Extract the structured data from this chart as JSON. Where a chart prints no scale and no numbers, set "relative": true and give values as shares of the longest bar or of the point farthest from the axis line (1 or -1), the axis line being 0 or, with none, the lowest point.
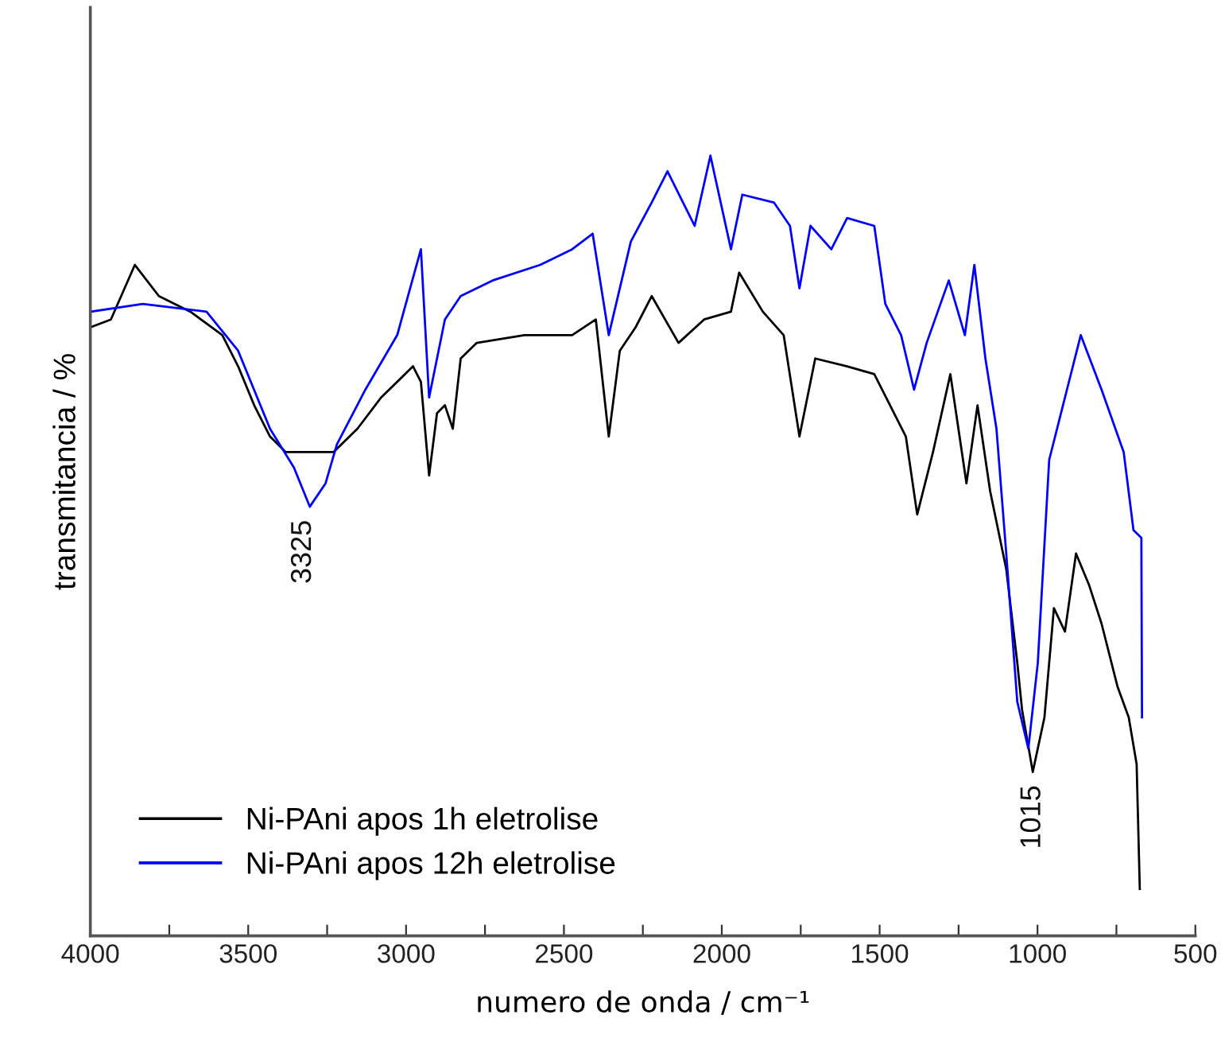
{
  "chart_data": {
    "type": "line",
    "relative": true,
    "xlabel": "numero de onda / cm⁻¹",
    "ylabel": "transmitancia / %",
    "xlim": [
      4000,
      500
    ],
    "xticks": [
      4000,
      {
        "value": 3750,
        "label": null
      },
      3500,
      {
        "value": 3250,
        "label": null
      },
      3000,
      {
        "value": 2750,
        "label": null
      },
      2500,
      {
        "value": 2250,
        "label": null
      },
      2000,
      {
        "value": 1750,
        "label": null
      },
      1500,
      {
        "value": 1250,
        "label": null
      },
      1000,
      {
        "value": 750,
        "label": null
      },
      500
    ],
    "tick_labels": "x",
    "grid": false,
    "legend": "bottom left",
    "marker": "none",
    "line_style": "solid",
    "annotations": [
      {
        "text": "3325",
        "x": 3325,
        "y": 0.55
      },
      {
        "text": "1015",
        "x": 1015,
        "y": 0.21
      }
    ],
    "series": [
      {
        "name": "Ni-PAni apos 1h eletrolise",
        "color": "#000000",
        "x": [
          4000,
          3935,
          3859,
          3783,
          3683,
          3582,
          3532,
          3481,
          3431,
          3381,
          3305,
          3230,
          3154,
          3079,
          3003,
          2978,
          2953,
          2927,
          2902,
          2877,
          2852,
          2827,
          2776,
          2625,
          2474,
          2399,
          2358,
          2323,
          2273,
          2222,
          2137,
          2056,
          1971,
          1945,
          1870,
          1804,
          1754,
          1704,
          1603,
          1517,
          1467,
          1417,
          1381,
          1331,
          1276,
          1225,
          1190,
          1150,
          1099,
          1064,
          1049,
          1015,
          978,
          948,
          913,
          878,
          837,
          797,
          747,
          711,
          686,
          676
        ],
        "values": [
          0.78,
          0.79,
          0.86,
          0.82,
          0.8,
          0.77,
          0.73,
          0.68,
          0.64,
          0.62,
          0.62,
          0.62,
          0.65,
          0.69,
          0.72,
          0.73,
          0.71,
          0.59,
          0.67,
          0.68,
          0.65,
          0.74,
          0.76,
          0.77,
          0.77,
          0.79,
          0.64,
          0.75,
          0.78,
          0.82,
          0.76,
          0.79,
          0.8,
          0.85,
          0.8,
          0.77,
          0.64,
          0.74,
          0.73,
          0.72,
          0.68,
          0.64,
          0.54,
          0.62,
          0.72,
          0.58,
          0.68,
          0.57,
          0.47,
          0.35,
          0.29,
          0.21,
          0.28,
          0.42,
          0.39,
          0.49,
          0.45,
          0.4,
          0.32,
          0.28,
          0.22,
          0.06
        ]
      },
      {
        "name": "Ni-PAni apos 12h eletrolise",
        "color": "#0000ff",
        "x": [
          4000,
          3834,
          3632,
          3532,
          3431,
          3355,
          3305,
          3255,
          3219,
          3129,
          3028,
          2953,
          2927,
          2877,
          2827,
          2726,
          2575,
          2474,
          2409,
          2358,
          2288,
          2222,
          2172,
          2086,
          2036,
          1971,
          1935,
          1835,
          1784,
          1754,
          1719,
          1653,
          1603,
          1517,
          1482,
          1432,
          1391,
          1351,
          1281,
          1230,
          1200,
          1165,
          1130,
          1099,
          1064,
          1029,
          999,
          963,
          913,
          863,
          797,
          727,
          696,
          671,
          669
        ],
        "values": [
          0.8,
          0.81,
          0.8,
          0.75,
          0.65,
          0.6,
          0.55,
          0.58,
          0.63,
          0.7,
          0.77,
          0.88,
          0.69,
          0.79,
          0.82,
          0.84,
          0.86,
          0.88,
          0.9,
          0.77,
          0.89,
          0.94,
          0.98,
          0.91,
          1,
          0.88,
          0.95,
          0.94,
          0.91,
          0.83,
          0.91,
          0.88,
          0.92,
          0.91,
          0.81,
          0.77,
          0.7,
          0.76,
          0.84,
          0.77,
          0.86,
          0.74,
          0.65,
          0.49,
          0.3,
          0.24,
          0.35,
          0.61,
          0.69,
          0.77,
          0.7,
          0.62,
          0.52,
          0.51,
          0.28
        ]
      }
    ]
  }
}
